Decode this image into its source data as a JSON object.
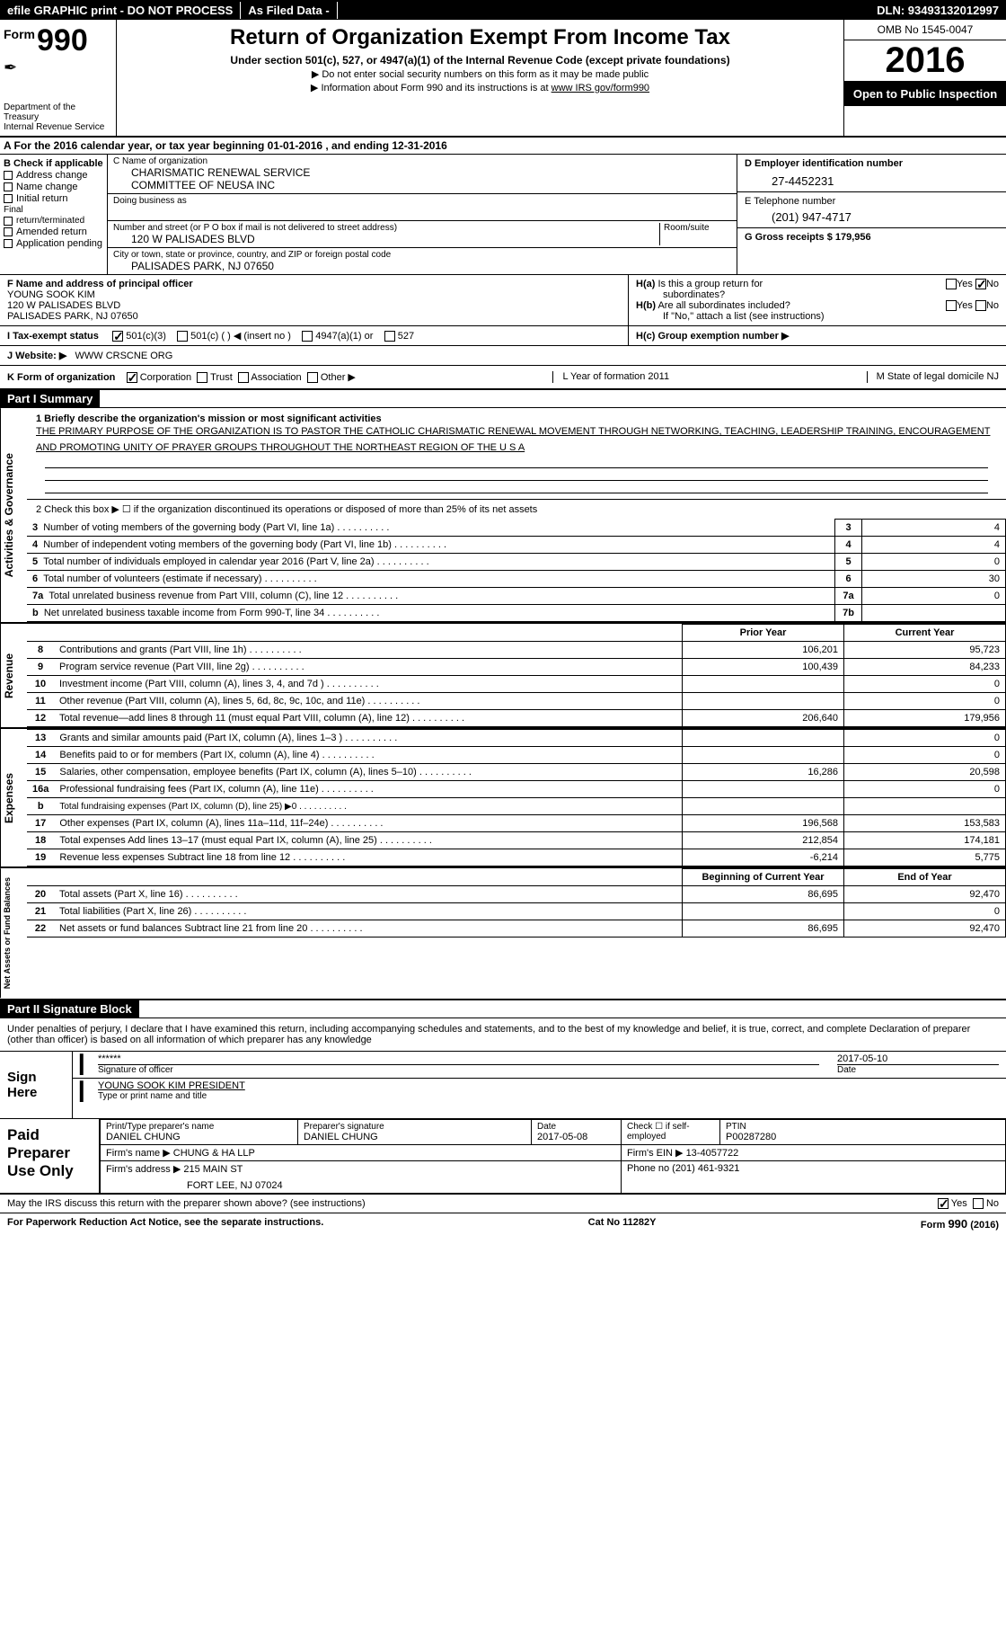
{
  "topbar": {
    "efile": "efile GRAPHIC print - DO NOT PROCESS",
    "asfiled": "As Filed Data -",
    "dln": "DLN: 93493132012997"
  },
  "header": {
    "form_word": "Form",
    "form_num": "990",
    "dept1": "Department of the Treasury",
    "dept2": "Internal Revenue Service",
    "title": "Return of Organization Exempt From Income Tax",
    "subtitle": "Under section 501(c), 527, or 4947(a)(1) of the Internal Revenue Code (except private foundations)",
    "note1": "▶ Do not enter social security numbers on this form as it may be made public",
    "note2_pre": "▶ Information about Form 990 and its instructions is at ",
    "note2_link": "www IRS gov/form990",
    "omb": "OMB No 1545-0047",
    "year": "2016",
    "inspection": "Open to Public Inspection"
  },
  "section_a": "A  For the 2016 calendar year, or tax year beginning 01-01-2016  , and ending 12-31-2016",
  "box_b": {
    "title": "B Check if applicable",
    "items": [
      "Address change",
      "Name change",
      "Initial return",
      "Final return/terminated",
      "Amended return",
      "Application pending"
    ]
  },
  "box_c": {
    "name_label": "C Name of organization",
    "name1": "CHARISMATIC RENEWAL SERVICE",
    "name2": "COMMITTEE OF NEUSA INC",
    "dba_label": "Doing business as",
    "addr_label": "Number and street (or P O box if mail is not delivered to street address)",
    "room_label": "Room/suite",
    "addr": "120 W PALISADES BLVD",
    "city_label": "City or town, state or province, country, and ZIP or foreign postal code",
    "city": "PALISADES PARK, NJ  07650"
  },
  "box_d": {
    "label": "D Employer identification number",
    "value": "27-4452231"
  },
  "box_e": {
    "label": "E Telephone number",
    "value": "(201) 947-4717"
  },
  "box_g": {
    "label": "G Gross receipts $ 179,956"
  },
  "box_f": {
    "label": "F  Name and address of principal officer",
    "name": "YOUNG SOOK KIM",
    "addr": "120 W PALISADES BLVD",
    "city": "PALISADES PARK, NJ  07650"
  },
  "box_h": {
    "ha": "H(a) Is this a group return for subordinates?",
    "hb": "H(b) Are all subordinates included?",
    "hb_note": "If \"No,\" attach a list  (see instructions)",
    "hc": "H(c) Group exemption number ▶"
  },
  "row_i": {
    "label": "I  Tax-exempt status",
    "opts": [
      "501(c)(3)",
      "501(c) (  ) ◀ (insert no )",
      "4947(a)(1) or",
      "527"
    ]
  },
  "row_j": {
    "label": "J  Website: ▶",
    "value": "WWW CRSCNE ORG"
  },
  "row_k": {
    "label": "K Form of organization",
    "opts": [
      "Corporation",
      "Trust",
      "Association",
      "Other ▶"
    ]
  },
  "row_l": {
    "label": "L Year of formation  2011"
  },
  "row_m": {
    "label": "M State of legal domicile  NJ"
  },
  "part1": {
    "title": "Part I     Summary",
    "q1_label": "1 Briefly describe the organization's mission or most significant activities",
    "q1_text": "THE PRIMARY PURPOSE OF THE ORGANIZATION IS TO PASTOR THE CATHOLIC CHARISMATIC RENEWAL MOVEMENT THROUGH NETWORKING, TEACHING, LEADERSHIP TRAINING, ENCOURAGEMENT AND PROMOTING UNITY OF PRAYER GROUPS THROUGHOUT THE NORTHEAST REGION OF THE U S A",
    "q2": "2  Check this box ▶ ☐ if the organization discontinued its operations or disposed of more than 25% of its net assets",
    "vert1": "Activities & Governance",
    "vert2": "Revenue",
    "vert3": "Expenses",
    "vert4": "Net Assets or Fund Balances",
    "rows_gov": [
      {
        "n": "3",
        "label": "Number of voting members of the governing body (Part VI, line 1a)",
        "box": "3",
        "val": "4"
      },
      {
        "n": "4",
        "label": "Number of independent voting members of the governing body (Part VI, line 1b)",
        "box": "4",
        "val": "4"
      },
      {
        "n": "5",
        "label": "Total number of individuals employed in calendar year 2016 (Part V, line 2a)",
        "box": "5",
        "val": "0"
      },
      {
        "n": "6",
        "label": "Total number of volunteers (estimate if necessary)",
        "box": "6",
        "val": "30"
      },
      {
        "n": "7a",
        "label": "Total unrelated business revenue from Part VIII, column (C), line 12",
        "box": "7a",
        "val": "0"
      },
      {
        "n": "b",
        "label": "Net unrelated business taxable income from Form 990-T, line 34",
        "box": "7b",
        "val": ""
      }
    ],
    "col_prior": "Prior Year",
    "col_current": "Current Year",
    "rows_rev": [
      {
        "n": "8",
        "label": "Contributions and grants (Part VIII, line 1h)",
        "prior": "106,201",
        "curr": "95,723"
      },
      {
        "n": "9",
        "label": "Program service revenue (Part VIII, line 2g)",
        "prior": "100,439",
        "curr": "84,233"
      },
      {
        "n": "10",
        "label": "Investment income (Part VIII, column (A), lines 3, 4, and 7d )",
        "prior": "",
        "curr": "0"
      },
      {
        "n": "11",
        "label": "Other revenue (Part VIII, column (A), lines 5, 6d, 8c, 9c, 10c, and 11e)",
        "prior": "",
        "curr": "0"
      },
      {
        "n": "12",
        "label": "Total revenue—add lines 8 through 11 (must equal Part VIII, column (A), line 12)",
        "prior": "206,640",
        "curr": "179,956"
      }
    ],
    "rows_exp": [
      {
        "n": "13",
        "label": "Grants and similar amounts paid (Part IX, column (A), lines 1–3 )",
        "prior": "",
        "curr": "0"
      },
      {
        "n": "14",
        "label": "Benefits paid to or for members (Part IX, column (A), line 4)",
        "prior": "",
        "curr": "0"
      },
      {
        "n": "15",
        "label": "Salaries, other compensation, employee benefits (Part IX, column (A), lines 5–10)",
        "prior": "16,286",
        "curr": "20,598"
      },
      {
        "n": "16a",
        "label": "Professional fundraising fees (Part IX, column (A), line 11e)",
        "prior": "",
        "curr": "0"
      },
      {
        "n": "b",
        "label": "Total fundraising expenses (Part IX, column (D), line 25) ▶0",
        "prior": "",
        "curr": ""
      },
      {
        "n": "17",
        "label": "Other expenses (Part IX, column (A), lines 11a–11d, 11f–24e)",
        "prior": "196,568",
        "curr": "153,583"
      },
      {
        "n": "18",
        "label": "Total expenses  Add lines 13–17 (must equal Part IX, column (A), line 25)",
        "prior": "212,854",
        "curr": "174,181"
      },
      {
        "n": "19",
        "label": "Revenue less expenses  Subtract line 18 from line 12",
        "prior": "-6,214",
        "curr": "5,775"
      }
    ],
    "col_begin": "Beginning of Current Year",
    "col_end": "End of Year",
    "rows_net": [
      {
        "n": "20",
        "label": "Total assets (Part X, line 16)",
        "prior": "86,695",
        "curr": "92,470"
      },
      {
        "n": "21",
        "label": "Total liabilities (Part X, line 26)",
        "prior": "",
        "curr": "0"
      },
      {
        "n": "22",
        "label": "Net assets or fund balances  Subtract line 21 from line 20",
        "prior": "86,695",
        "curr": "92,470"
      }
    ]
  },
  "part2": {
    "title": "Part II     Signature Block",
    "perjury": "Under penalties of perjury, I declare that I have examined this return, including accompanying schedules and statements, and to the best of my knowledge and belief, it is true, correct, and complete  Declaration of preparer (other than officer) is based on all information of which preparer has any knowledge",
    "sign_here": "Sign Here",
    "stars": "******",
    "sig_label": "Signature of officer",
    "date_label": "Date",
    "date": "2017-05-10",
    "name": "YOUNG SOOK KIM  PRESIDENT",
    "name_label": "Type or print name and title",
    "paid": "Paid Preparer Use Only",
    "prep_name_label": "Print/Type preparer's name",
    "prep_name": "DANIEL CHUNG",
    "prep_sig_label": "Preparer's signature",
    "prep_sig": "DANIEL CHUNG",
    "prep_date_label": "Date",
    "prep_date": "2017-05-08",
    "self_emp": "Check ☐ if self-employed",
    "ptin_label": "PTIN",
    "ptin": "P00287280",
    "firm_name_label": "Firm's name   ▶",
    "firm_name": "CHUNG & HA LLP",
    "firm_ein_label": "Firm's EIN ▶",
    "firm_ein": "13-4057722",
    "firm_addr_label": "Firm's address ▶",
    "firm_addr1": "215 MAIN ST",
    "firm_addr2": "FORT LEE, NJ  07024",
    "phone_label": "Phone no  (201) 461-9321",
    "discuss": "May the IRS discuss this return with the preparer shown above? (see instructions)",
    "yes": "Yes",
    "no": "No"
  },
  "footer": {
    "left": "For Paperwork Reduction Act Notice, see the separate instructions.",
    "mid": "Cat No  11282Y",
    "right": "Form 990 (2016)"
  }
}
